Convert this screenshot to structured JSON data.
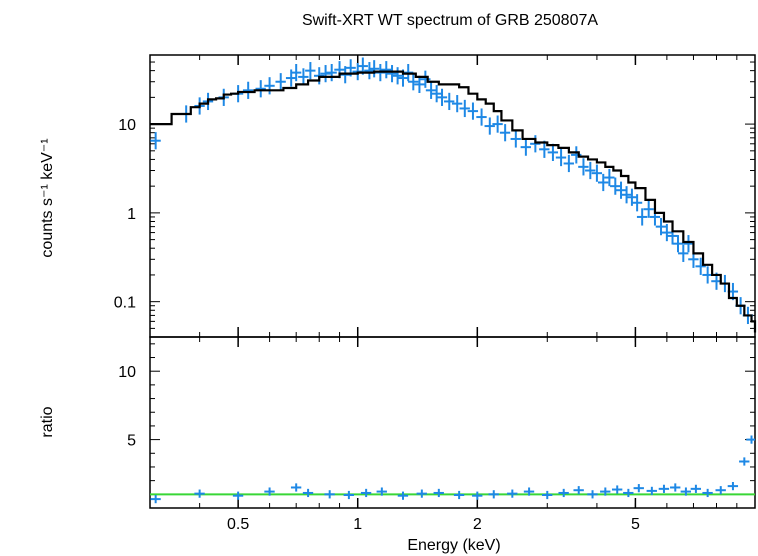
{
  "chart_data": [
    {
      "type": "scatter",
      "panel": "spectrum",
      "title": "Swift-XRT WT spectrum of GRB 250807A",
      "xlabel": "Energy (keV)",
      "ylabel": "counts s⁻¹ keV⁻¹",
      "xscale": "log",
      "yscale": "log",
      "xlim": [
        0.3,
        10
      ],
      "ylim": [
        0.04,
        60
      ],
      "xticks": [
        0.5,
        1,
        2,
        5
      ],
      "xtick_labels": [
        "0.5",
        "1",
        "2",
        "5"
      ],
      "yticks": [
        0.1,
        1,
        10
      ],
      "ytick_labels": [
        "0.1",
        "1",
        "10"
      ],
      "data_color": "#1e88e5",
      "model_color": "#000000",
      "series": [
        {
          "kind": "data-points",
          "x": [
            0.31,
            0.37,
            0.4,
            0.42,
            0.46,
            0.5,
            0.53,
            0.57,
            0.6,
            0.64,
            0.68,
            0.7,
            0.73,
            0.76,
            0.8,
            0.83,
            0.86,
            0.9,
            0.93,
            0.96,
            1.0,
            1.03,
            1.07,
            1.1,
            1.14,
            1.18,
            1.22,
            1.26,
            1.3,
            1.34,
            1.38,
            1.43,
            1.48,
            1.53,
            1.58,
            1.63,
            1.7,
            1.78,
            1.86,
            1.95,
            2.05,
            2.15,
            2.25,
            2.35,
            2.5,
            2.65,
            2.8,
            2.95,
            3.1,
            3.25,
            3.4,
            3.55,
            3.7,
            3.85,
            4.0,
            4.15,
            4.3,
            4.45,
            4.6,
            4.75,
            4.9,
            5.05,
            5.2,
            5.4,
            5.6,
            5.8,
            6.0,
            6.2,
            6.4,
            6.6,
            6.8,
            7.0,
            7.3,
            7.6,
            8.0,
            8.4,
            8.8,
            9.2,
            9.6
          ],
          "y": [
            6.5,
            13,
            16,
            18,
            20,
            22,
            24,
            25,
            27,
            30,
            33,
            38,
            34,
            40,
            35,
            37,
            38,
            41,
            36,
            43,
            39,
            45,
            40,
            42,
            38,
            41,
            37,
            35,
            33,
            38,
            30,
            28,
            32,
            24,
            22,
            20,
            18,
            17,
            15,
            14,
            12,
            9.5,
            10,
            8,
            6.8,
            5.5,
            6,
            5.2,
            4.8,
            4.2,
            3.6,
            4.5,
            3.3,
            3.0,
            2.8,
            2.2,
            2.5,
            2.0,
            1.8,
            1.6,
            1.5,
            1.3,
            0.9,
            1.1,
            0.9,
            0.7,
            0.6,
            0.55,
            0.45,
            0.35,
            0.45,
            0.3,
            0.25,
            0.2,
            0.17,
            0.16,
            0.13,
            0.09,
            0.07
          ]
        },
        {
          "kind": "model-step",
          "x": [
            0.3,
            0.32,
            0.34,
            0.36,
            0.38,
            0.4,
            0.42,
            0.44,
            0.46,
            0.48,
            0.5,
            0.55,
            0.6,
            0.65,
            0.7,
            0.75,
            0.8,
            0.9,
            1.0,
            1.1,
            1.2,
            1.3,
            1.4,
            1.5,
            1.6,
            1.7,
            1.8,
            1.9,
            2.0,
            2.1,
            2.2,
            2.3,
            2.45,
            2.6,
            2.8,
            3.0,
            3.2,
            3.4,
            3.6,
            3.8,
            4.0,
            4.2,
            4.4,
            4.6,
            4.8,
            5.0,
            5.3,
            5.6,
            5.9,
            6.2,
            6.6,
            7.0,
            7.4,
            7.8,
            8.2,
            8.6,
            9.0,
            9.4,
            9.8,
            10.0
          ],
          "y": [
            10,
            10,
            13,
            13,
            15.5,
            17,
            19,
            19.5,
            21.5,
            22,
            23,
            24,
            24,
            25.5,
            28,
            31,
            34,
            37,
            38,
            39,
            39,
            37,
            34,
            30,
            28,
            28,
            26,
            22,
            19,
            17,
            14,
            11,
            8.5,
            6.8,
            6.2,
            5.8,
            5.4,
            4.8,
            4.3,
            4.0,
            3.7,
            3.3,
            3.0,
            2.6,
            2.2,
            1.9,
            1.4,
            1.0,
            0.8,
            0.62,
            0.47,
            0.35,
            0.26,
            0.2,
            0.16,
            0.11,
            0.09,
            0.07,
            0.06,
            0.045
          ]
        }
      ]
    },
    {
      "type": "scatter",
      "panel": "ratio",
      "xlabel": "Energy (keV)",
      "ylabel": "ratio",
      "xscale": "log",
      "xlim": [
        0.3,
        10
      ],
      "ylim": [
        0,
        12.5
      ],
      "xticks": [
        0.5,
        1,
        2,
        5
      ],
      "xtick_labels": [
        "0.5",
        "1",
        "2",
        "5"
      ],
      "yticks": [
        5,
        10
      ],
      "ytick_labels": [
        "5",
        "10"
      ],
      "data_color": "#1e88e5",
      "reference_color": "#39d636",
      "reference_level": 1,
      "series": [
        {
          "kind": "data-points",
          "x": [
            0.31,
            0.4,
            0.5,
            0.6,
            0.7,
            0.75,
            0.85,
            0.95,
            1.05,
            1.15,
            1.3,
            1.45,
            1.6,
            1.8,
            2.0,
            2.2,
            2.45,
            2.7,
            3.0,
            3.3,
            3.6,
            3.9,
            4.2,
            4.5,
            4.8,
            5.1,
            5.5,
            5.9,
            6.3,
            6.7,
            7.1,
            7.6,
            8.2,
            8.8,
            9.4,
            9.8
          ],
          "y": [
            0.65,
            1.05,
            0.9,
            1.2,
            1.5,
            1.1,
            1.0,
            0.95,
            1.1,
            1.2,
            0.9,
            1.05,
            1.1,
            0.95,
            0.9,
            1.0,
            1.05,
            1.2,
            0.95,
            1.1,
            1.3,
            1.0,
            1.2,
            1.35,
            1.1,
            1.45,
            1.25,
            1.4,
            1.5,
            1.2,
            1.4,
            1.1,
            1.3,
            1.6,
            3.4,
            5.0
          ]
        }
      ]
    }
  ]
}
